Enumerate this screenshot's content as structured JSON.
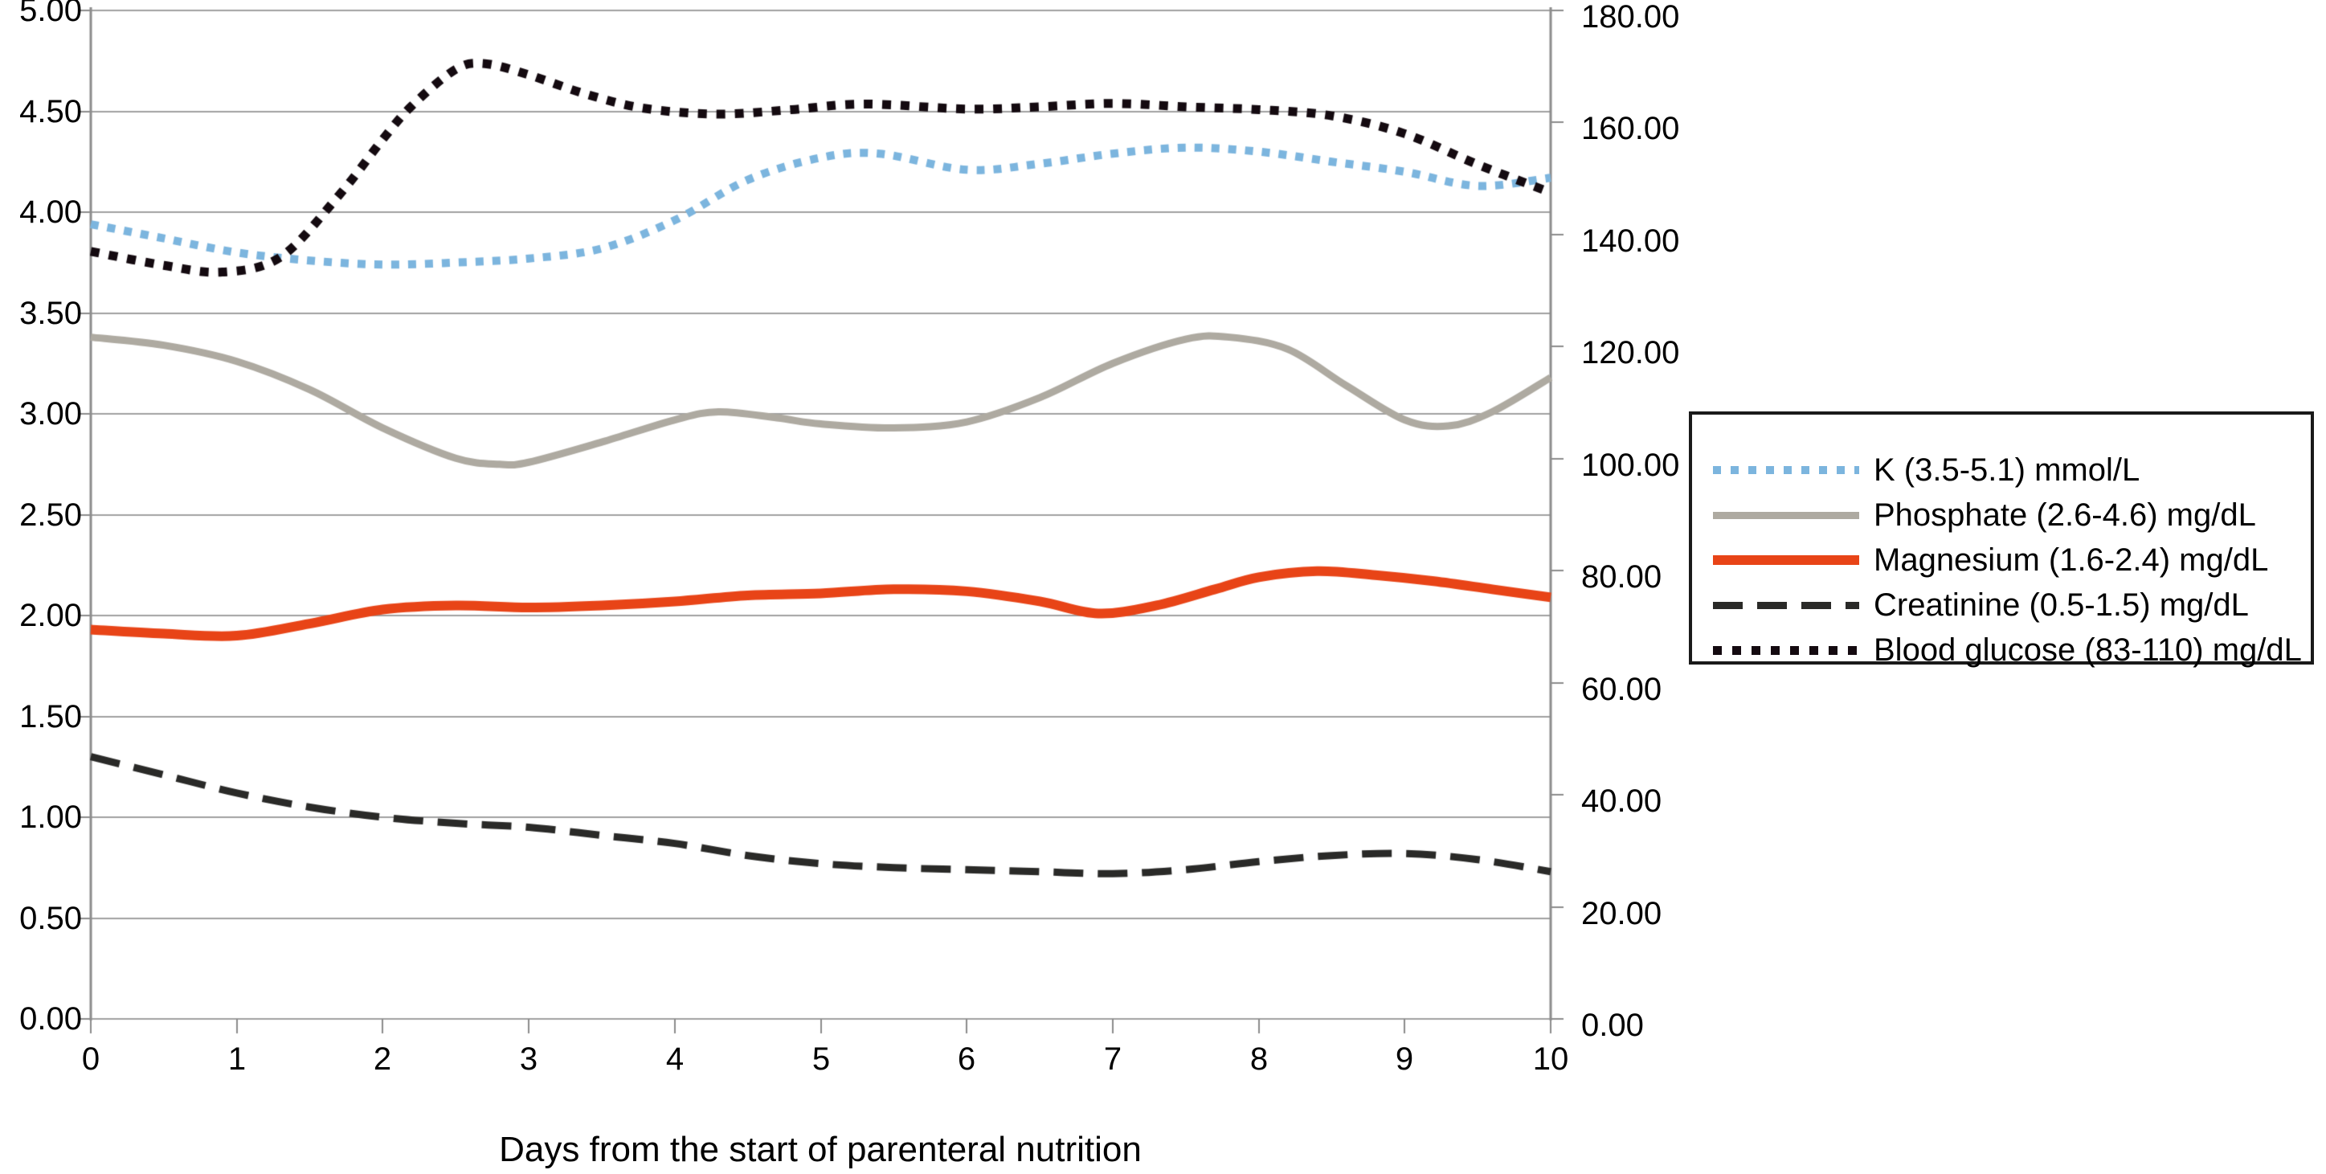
{
  "chart_data": {
    "type": "line",
    "title": "",
    "xlabel": "Days from the start of parenteral nutrition",
    "grid": true,
    "legend_position": "right",
    "x_axis": {
      "min": 0,
      "max": 10,
      "tick_labels": [
        "0",
        "1",
        "2",
        "3",
        "4",
        "5",
        "6",
        "7",
        "8",
        "9",
        "10"
      ]
    },
    "left_axis": {
      "min": 0,
      "max": 5,
      "step": 0.5,
      "tick_labels": [
        "5.00",
        "4.50",
        "4.00",
        "3.50",
        "3.00",
        "2.50",
        "2.00",
        "1.50",
        "1.00",
        "0.50",
        "0.00"
      ]
    },
    "right_axis": {
      "min": 0,
      "max": 180,
      "step": 20,
      "tick_labels": [
        "180.00",
        "160.00",
        "140.00",
        "120.00",
        "100.00",
        "80.00",
        "60.00",
        "40.00",
        "20.00",
        "0.00"
      ]
    },
    "series": [
      {
        "name": "K (3.5-5.1) mmol/L",
        "axis": "left",
        "color": "#7cb5de",
        "style": "dotted",
        "thickness": 10,
        "points": [
          [
            0,
            3.94
          ],
          [
            0.5,
            3.87
          ],
          [
            1,
            3.8
          ],
          [
            1.5,
            3.76
          ],
          [
            2,
            3.74
          ],
          [
            2.5,
            3.75
          ],
          [
            3,
            3.77
          ],
          [
            3.5,
            3.82
          ],
          [
            4,
            3.96
          ],
          [
            4.5,
            4.16
          ],
          [
            5,
            4.27
          ],
          [
            5.4,
            4.29
          ],
          [
            6,
            4.21
          ],
          [
            6.5,
            4.24
          ],
          [
            7,
            4.29
          ],
          [
            7.5,
            4.32
          ],
          [
            8,
            4.3
          ],
          [
            8.5,
            4.25
          ],
          [
            9,
            4.2
          ],
          [
            9.5,
            4.13
          ],
          [
            10,
            4.17
          ]
        ]
      },
      {
        "name": "Phosphate (2.6-4.6) mg/dL",
        "axis": "left",
        "color": "#aeaaa1",
        "style": "solid",
        "thickness": 9,
        "points": [
          [
            0,
            3.38
          ],
          [
            0.5,
            3.34
          ],
          [
            1,
            3.26
          ],
          [
            1.5,
            3.12
          ],
          [
            2,
            2.93
          ],
          [
            2.5,
            2.78
          ],
          [
            2.8,
            2.75
          ],
          [
            3,
            2.76
          ],
          [
            3.5,
            2.86
          ],
          [
            4,
            2.97
          ],
          [
            4.3,
            3.01
          ],
          [
            4.7,
            2.98
          ],
          [
            5,
            2.95
          ],
          [
            5.5,
            2.93
          ],
          [
            6,
            2.96
          ],
          [
            6.5,
            3.08
          ],
          [
            7,
            3.25
          ],
          [
            7.5,
            3.37
          ],
          [
            7.8,
            3.38
          ],
          [
            8.2,
            3.32
          ],
          [
            8.6,
            3.14
          ],
          [
            9,
            2.97
          ],
          [
            9.3,
            2.94
          ],
          [
            9.6,
            3.01
          ],
          [
            10,
            3.18
          ]
        ]
      },
      {
        "name": "Magnesium (1.6-2.4) mg/dL",
        "axis": "left",
        "color": "#e84417",
        "style": "solid",
        "thickness": 12,
        "points": [
          [
            0,
            1.93
          ],
          [
            0.5,
            1.91
          ],
          [
            1,
            1.9
          ],
          [
            1.5,
            1.96
          ],
          [
            2,
            2.03
          ],
          [
            2.5,
            2.05
          ],
          [
            3,
            2.04
          ],
          [
            3.5,
            2.05
          ],
          [
            4,
            2.07
          ],
          [
            4.5,
            2.1
          ],
          [
            5,
            2.11
          ],
          [
            5.5,
            2.13
          ],
          [
            6,
            2.12
          ],
          [
            6.5,
            2.07
          ],
          [
            6.9,
            2.01
          ],
          [
            7.3,
            2.05
          ],
          [
            7.7,
            2.13
          ],
          [
            8,
            2.19
          ],
          [
            8.4,
            2.22
          ],
          [
            8.8,
            2.2
          ],
          [
            9.2,
            2.17
          ],
          [
            9.6,
            2.13
          ],
          [
            10,
            2.09
          ]
        ]
      },
      {
        "name": "Creatinine (0.5-1.5) mg/dL",
        "axis": "left",
        "color": "#2a2a28",
        "style": "dashed",
        "thickness": 9,
        "points": [
          [
            0,
            1.3
          ],
          [
            0.5,
            1.21
          ],
          [
            1,
            1.12
          ],
          [
            1.5,
            1.05
          ],
          [
            2,
            1.0
          ],
          [
            2.5,
            0.97
          ],
          [
            3,
            0.95
          ],
          [
            3.5,
            0.91
          ],
          [
            4,
            0.87
          ],
          [
            4.5,
            0.81
          ],
          [
            5,
            0.77
          ],
          [
            5.5,
            0.75
          ],
          [
            6,
            0.74
          ],
          [
            6.5,
            0.73
          ],
          [
            7,
            0.72
          ],
          [
            7.5,
            0.74
          ],
          [
            8,
            0.78
          ],
          [
            8.5,
            0.81
          ],
          [
            9,
            0.82
          ],
          [
            9.5,
            0.79
          ],
          [
            10,
            0.73
          ]
        ]
      },
      {
        "name": "Blood glucose (83-110) mg/dL",
        "axis": "right",
        "color": "#140a10",
        "style": "dotted",
        "thickness": 11,
        "points": [
          [
            0,
            137
          ],
          [
            0.5,
            134.5
          ],
          [
            0.9,
            133.3
          ],
          [
            1.3,
            136
          ],
          [
            1.7,
            147
          ],
          [
            2,
            157
          ],
          [
            2.2,
            163
          ],
          [
            2.5,
            169.5
          ],
          [
            2.7,
            170.5
          ],
          [
            3,
            168.5
          ],
          [
            3.4,
            165
          ],
          [
            3.8,
            162.5
          ],
          [
            4.3,
            161.5
          ],
          [
            4.8,
            162.3
          ],
          [
            5.3,
            163.3
          ],
          [
            6,
            162.4
          ],
          [
            6.5,
            162.8
          ],
          [
            7,
            163.4
          ],
          [
            7.5,
            162.8
          ],
          [
            8,
            162.3
          ],
          [
            8.5,
            161.2
          ],
          [
            9,
            158
          ],
          [
            9.5,
            152.5
          ],
          [
            10,
            147.5
          ]
        ]
      }
    ]
  }
}
